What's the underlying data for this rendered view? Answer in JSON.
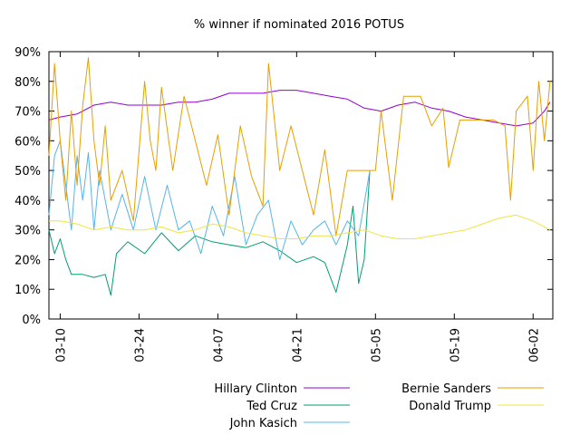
{
  "chart_data": {
    "type": "line",
    "title": "% winner if nominated 2016 POTUS",
    "xlabel": "",
    "ylabel": "",
    "ylim": [
      0,
      90
    ],
    "y_ticks": [
      0,
      10,
      20,
      30,
      40,
      50,
      60,
      70,
      80,
      90
    ],
    "y_tick_labels": [
      "0%",
      "10%",
      "20%",
      "30%",
      "40%",
      "50%",
      "60%",
      "70%",
      "80%",
      "90%"
    ],
    "x_ticks": [
      "03-10",
      "03-24",
      "04-07",
      "04-21",
      "05-05",
      "05-19",
      "06-02"
    ],
    "grid": false,
    "legend_position": "bottom",
    "series": [
      {
        "name": "Hillary Clinton",
        "color": "#9400d3",
        "points": [
          [
            "03-08",
            67
          ],
          [
            "03-10",
            68
          ],
          [
            "03-13",
            69
          ],
          [
            "03-16",
            72
          ],
          [
            "03-19",
            73
          ],
          [
            "03-22",
            72
          ],
          [
            "03-25",
            72
          ],
          [
            "03-28",
            72
          ],
          [
            "03-31",
            73
          ],
          [
            "04-03",
            73
          ],
          [
            "04-06",
            74
          ],
          [
            "04-09",
            76
          ],
          [
            "04-12",
            76
          ],
          [
            "04-15",
            76
          ],
          [
            "04-18",
            77
          ],
          [
            "04-21",
            77
          ],
          [
            "04-24",
            76
          ],
          [
            "04-27",
            75
          ],
          [
            "04-30",
            74
          ],
          [
            "05-03",
            71
          ],
          [
            "05-06",
            70
          ],
          [
            "05-09",
            72
          ],
          [
            "05-12",
            73
          ],
          [
            "05-15",
            71
          ],
          [
            "05-18",
            70
          ],
          [
            "05-21",
            68
          ],
          [
            "05-24",
            67
          ],
          [
            "05-27",
            66
          ],
          [
            "05-30",
            65
          ],
          [
            "06-02",
            66
          ],
          [
            "06-04",
            70
          ],
          [
            "06-05",
            73
          ]
        ]
      },
      {
        "name": "Ted Cruz",
        "color": "#009e73",
        "points": [
          [
            "03-08",
            30
          ],
          [
            "03-09",
            22
          ],
          [
            "03-10",
            27
          ],
          [
            "03-11",
            20
          ],
          [
            "03-12",
            15
          ],
          [
            "03-14",
            15
          ],
          [
            "03-16",
            14
          ],
          [
            "03-18",
            15
          ],
          [
            "03-19",
            8
          ],
          [
            "03-20",
            22
          ],
          [
            "03-22",
            26
          ],
          [
            "03-25",
            22
          ],
          [
            "03-28",
            29
          ],
          [
            "03-31",
            23
          ],
          [
            "04-03",
            28
          ],
          [
            "04-06",
            26
          ],
          [
            "04-09",
            25
          ],
          [
            "04-12",
            24
          ],
          [
            "04-15",
            26
          ],
          [
            "04-18",
            23
          ],
          [
            "04-21",
            19
          ],
          [
            "04-24",
            21
          ],
          [
            "04-26",
            19
          ],
          [
            "04-28",
            9
          ],
          [
            "04-30",
            25
          ],
          [
            "05-01",
            38
          ],
          [
            "05-02",
            12
          ],
          [
            "05-03",
            20
          ],
          [
            "05-04",
            50
          ]
        ]
      },
      {
        "name": "John Kasich",
        "color": "#56b4e9",
        "points": [
          [
            "03-08",
            35
          ],
          [
            "03-09",
            55
          ],
          [
            "03-10",
            60
          ],
          [
            "03-11",
            45
          ],
          [
            "03-12",
            30
          ],
          [
            "03-13",
            55
          ],
          [
            "03-14",
            40
          ],
          [
            "03-15",
            56
          ],
          [
            "03-16",
            30
          ],
          [
            "03-17",
            50
          ],
          [
            "03-19",
            30
          ],
          [
            "03-21",
            42
          ],
          [
            "03-23",
            30
          ],
          [
            "03-25",
            48
          ],
          [
            "03-27",
            30
          ],
          [
            "03-29",
            45
          ],
          [
            "03-31",
            30
          ],
          [
            "04-02",
            33
          ],
          [
            "04-04",
            22
          ],
          [
            "04-06",
            38
          ],
          [
            "04-08",
            28
          ],
          [
            "04-10",
            48
          ],
          [
            "04-12",
            25
          ],
          [
            "04-14",
            35
          ],
          [
            "04-16",
            40
          ],
          [
            "04-18",
            20
          ],
          [
            "04-20",
            33
          ],
          [
            "04-22",
            25
          ],
          [
            "04-24",
            30
          ],
          [
            "04-26",
            33
          ],
          [
            "04-28",
            25
          ],
          [
            "04-30",
            33
          ],
          [
            "05-02",
            28
          ],
          [
            "05-04",
            50
          ]
        ]
      },
      {
        "name": "Bernie Sanders",
        "color": "#e69f00",
        "points": [
          [
            "03-08",
            55
          ],
          [
            "03-09",
            86
          ],
          [
            "03-10",
            60
          ],
          [
            "03-11",
            40
          ],
          [
            "03-12",
            70
          ],
          [
            "03-13",
            45
          ],
          [
            "03-14",
            72
          ],
          [
            "03-15",
            88
          ],
          [
            "03-16",
            60
          ],
          [
            "03-17",
            45
          ],
          [
            "03-18",
            65
          ],
          [
            "03-19",
            40
          ],
          [
            "03-21",
            50
          ],
          [
            "03-23",
            33
          ],
          [
            "03-25",
            80
          ],
          [
            "03-26",
            60
          ],
          [
            "03-27",
            50
          ],
          [
            "03-28",
            78
          ],
          [
            "03-30",
            50
          ],
          [
            "04-01",
            75
          ],
          [
            "04-03",
            60
          ],
          [
            "04-05",
            45
          ],
          [
            "04-07",
            62
          ],
          [
            "04-09",
            35
          ],
          [
            "04-11",
            65
          ],
          [
            "04-13",
            48
          ],
          [
            "04-15",
            38
          ],
          [
            "04-16",
            86
          ],
          [
            "04-18",
            50
          ],
          [
            "04-20",
            65
          ],
          [
            "04-22",
            50
          ],
          [
            "04-24",
            35
          ],
          [
            "04-26",
            57
          ],
          [
            "04-28",
            28
          ],
          [
            "04-30",
            50
          ],
          [
            "05-02",
            50
          ],
          [
            "05-05",
            50
          ],
          [
            "05-06",
            70
          ],
          [
            "05-08",
            40
          ],
          [
            "05-10",
            75
          ],
          [
            "05-13",
            75
          ],
          [
            "05-15",
            65
          ],
          [
            "05-17",
            71
          ],
          [
            "05-18",
            51
          ],
          [
            "05-20",
            67
          ],
          [
            "05-23",
            67
          ],
          [
            "05-26",
            67
          ],
          [
            "05-28",
            65
          ],
          [
            "05-29",
            40
          ],
          [
            "05-30",
            70
          ],
          [
            "06-01",
            75
          ],
          [
            "06-02",
            50
          ],
          [
            "06-03",
            80
          ],
          [
            "06-04",
            60
          ],
          [
            "06-05",
            80
          ]
        ]
      },
      {
        "name": "Donald Trump",
        "color": "#f0e442",
        "points": [
          [
            "03-08",
            33
          ],
          [
            "03-10",
            33
          ],
          [
            "03-13",
            32
          ],
          [
            "03-16",
            30
          ],
          [
            "03-19",
            31
          ],
          [
            "03-22",
            30
          ],
          [
            "03-25",
            30
          ],
          [
            "03-28",
            31
          ],
          [
            "03-31",
            29
          ],
          [
            "04-03",
            30
          ],
          [
            "04-06",
            32
          ],
          [
            "04-09",
            31
          ],
          [
            "04-12",
            29
          ],
          [
            "04-15",
            28
          ],
          [
            "04-18",
            27
          ],
          [
            "04-21",
            27
          ],
          [
            "04-24",
            28
          ],
          [
            "04-27",
            28
          ],
          [
            "04-30",
            29
          ],
          [
            "05-03",
            30
          ],
          [
            "05-06",
            28
          ],
          [
            "05-09",
            27
          ],
          [
            "05-12",
            27
          ],
          [
            "05-15",
            28
          ],
          [
            "05-18",
            29
          ],
          [
            "05-21",
            30
          ],
          [
            "05-24",
            32
          ],
          [
            "05-27",
            34
          ],
          [
            "05-30",
            35
          ],
          [
            "06-02",
            33
          ],
          [
            "06-04",
            31
          ],
          [
            "06-05",
            30
          ]
        ]
      }
    ]
  }
}
